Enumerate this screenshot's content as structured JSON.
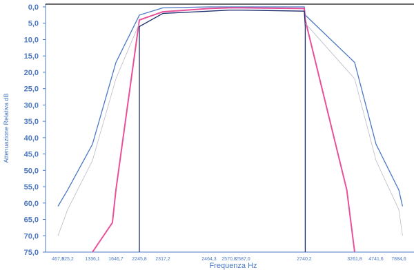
{
  "chart_data": {
    "type": "line",
    "title": "",
    "xlabel": "Frequenza Hz",
    "ylabel": "Attenuazione Relativa dB",
    "ylim": [
      0,
      75
    ],
    "y_inverted": true,
    "y_ticks": [
      "0,0",
      "5,0",
      "10,0",
      "15,0",
      "20,0",
      "25,0",
      "30,0",
      "35,0",
      "40,0",
      "45,0",
      "50,0",
      "55,0",
      "60,0",
      "65,0",
      "70,0",
      "75,0"
    ],
    "x_ticks": [
      "467,3",
      "625,2",
      "1336,1",
      "1646,7",
      "2245,8",
      "2317,2",
      "2464,3",
      "2570,8",
      "2587,0",
      "2740,2",
      "3261,8",
      "4741,6",
      "7884,6"
    ],
    "grid": false,
    "legend": "none",
    "colors": {
      "blue": "#4a78c2",
      "pink": "#e8509a",
      "faint": "#b8bcc8",
      "navy": "#1c2c6e",
      "axis": "#4a78c2",
      "topline": "#111111"
    },
    "series": [
      {
        "color": "blue",
        "x": [
          467.3,
          625.2,
          1336.1,
          1646.7,
          2245.8,
          2317.2,
          2464.3,
          2570.8,
          2587.0,
          2740.2,
          2750,
          3261.8,
          4741.6,
          7884.6,
          8400
        ],
        "y": [
          61,
          56,
          42,
          17,
          2.5,
          0.3,
          0,
          0,
          0,
          0,
          2.5,
          17,
          42,
          56,
          61
        ]
      },
      {
        "color": "pink",
        "x": [
          1336.1,
          1600,
          1646.7,
          2245.8,
          2317.2,
          2464.3,
          2570.8,
          2587.0,
          2740.2,
          2750,
          3180,
          3261.8
        ],
        "y": [
          75,
          66,
          56,
          4,
          1.5,
          0.5,
          0.3,
          0.3,
          0.5,
          4,
          56,
          75
        ]
      },
      {
        "color": "navy",
        "x": [
          2245.8,
          2245.8,
          2317.2,
          2464.3,
          2570.8,
          2587.0,
          2740.2,
          2750,
          2750
        ],
        "y": [
          75,
          6,
          2,
          1.3,
          1,
          1,
          1.3,
          6,
          75
        ]
      },
      {
        "color": "faint",
        "x": [
          467.3,
          625.2,
          1336.1,
          1646.7,
          2245.8
        ],
        "y": [
          70,
          62,
          47,
          22,
          5
        ]
      },
      {
        "color": "faint",
        "x": [
          2750,
          3261.8,
          4741.6,
          7884.6,
          8400
        ],
        "y": [
          5,
          22,
          47,
          62,
          70
        ]
      }
    ]
  }
}
